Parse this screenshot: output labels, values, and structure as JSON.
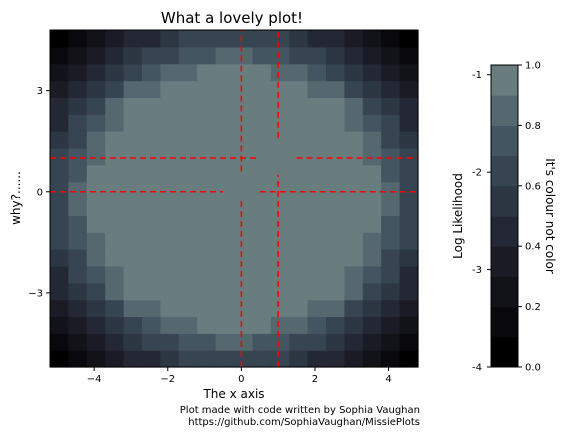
{
  "chart_data": {
    "type": "heatmap",
    "title": "What a lovely plot!",
    "xlabel": "The x axis",
    "ylabel": "why?......",
    "xlim": [
      -5.2,
      4.8
    ],
    "ylim": [
      -5.2,
      4.8
    ],
    "x_ticks": [
      -4,
      -2,
      0,
      2,
      4
    ],
    "x_tick_labels": [
      "−4",
      "−2",
      "0",
      "2",
      "4"
    ],
    "y_ticks": [
      -3,
      0,
      3
    ],
    "y_tick_labels": [
      "−3",
      "0",
      "3"
    ],
    "cell_size": 0.5,
    "grid_x_start": -5.2,
    "grid_y_start": -5.2,
    "grid_cols": 20,
    "grid_rows": 20,
    "levels": 10,
    "cmap": "bone",
    "field": "radial — darkest at the corners, white across a central disc of radius about 3.5 around (-0.2, -0.2)",
    "lines": [
      {
        "orientation": "vertical",
        "x": 0,
        "color": "#ff0000",
        "style": "dashed",
        "gap_y": [
          -0.2,
          0.6
        ]
      },
      {
        "orientation": "vertical",
        "x": 1,
        "color": "#ff0000",
        "style": "dashed",
        "gap_y": [
          0.5,
          1.6
        ]
      },
      {
        "orientation": "horizontal",
        "y": 0,
        "color": "#ff0000",
        "style": "dashed",
        "gap_x": [
          -0.5,
          0.5
        ]
      },
      {
        "orientation": "horizontal",
        "y": 1,
        "color": "#ff0000",
        "style": "dashed",
        "gap_x": [
          0.5,
          1.5
        ]
      }
    ],
    "colorbar": {
      "range": [
        0,
        1
      ],
      "ticks": [
        0.0,
        0.2,
        0.4,
        0.6,
        0.8,
        1.0
      ],
      "tick_labels": [
        "0.0",
        "0.2",
        "0.4",
        "0.6",
        "0.8",
        "1.0"
      ],
      "right_label": "It's colour not color",
      "left_label": "Log Likelihood",
      "left_ticks": [
        -4,
        -3,
        -2,
        -1
      ],
      "left_tick_labels": [
        "-4",
        "-3",
        "-2",
        "-1"
      ],
      "left_range": [
        -4,
        -0.9
      ]
    }
  },
  "credit": {
    "line1": "Plot made with code written by Sophia Vaughan",
    "line2": "https://github.com/SophiaVaughan/MissiePlots"
  }
}
